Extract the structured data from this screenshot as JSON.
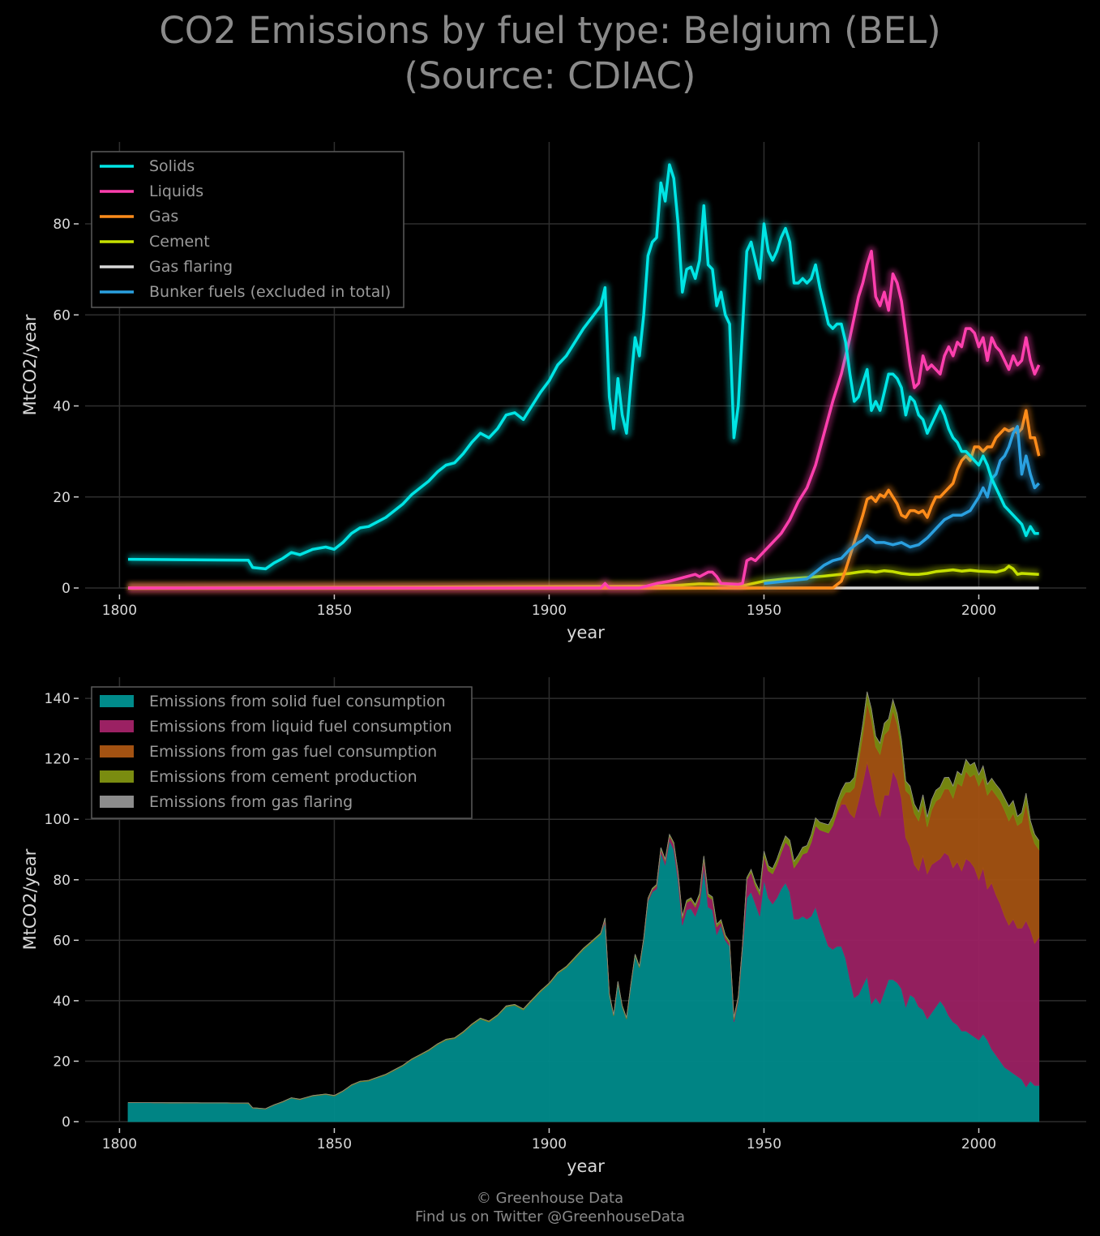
{
  "page": {
    "title_line1": "CO2 Emissions by fuel type: Belgium (BEL)",
    "title_line2": "(Source: CDIAC)",
    "footer_line1": "© Greenhouse Data",
    "footer_line2": "Find us on Twitter @GreenhouseData"
  },
  "chart_data": [
    {
      "type": "line",
      "xlabel": "year",
      "ylabel": "MtCO2/year",
      "xlim": [
        1792,
        2025
      ],
      "ylim": [
        0,
        98
      ],
      "xticks": [
        1800,
        1850,
        1900,
        1950,
        2000
      ],
      "yticks": [
        0,
        20,
        40,
        60,
        80
      ],
      "grid": true,
      "legend_position": "top-left",
      "series": [
        {
          "name": "Solids",
          "color": "#00e5e5",
          "x": [
            1802,
            1830,
            1831,
            1834,
            1836,
            1838,
            1840,
            1842,
            1845,
            1848,
            1850,
            1852,
            1854,
            1856,
            1858,
            1860,
            1862,
            1864,
            1866,
            1868,
            1870,
            1872,
            1874,
            1876,
            1878,
            1880,
            1882,
            1884,
            1886,
            1888,
            1890,
            1892,
            1894,
            1896,
            1898,
            1900,
            1902,
            1904,
            1906,
            1908,
            1910,
            1912,
            1913,
            1914,
            1915,
            1916,
            1917,
            1918,
            1919,
            1920,
            1921,
            1922,
            1923,
            1924,
            1925,
            1926,
            1927,
            1928,
            1929,
            1930,
            1931,
            1932,
            1933,
            1934,
            1935,
            1936,
            1937,
            1938,
            1939,
            1940,
            1941,
            1942,
            1943,
            1944,
            1945,
            1946,
            1947,
            1948,
            1949,
            1950,
            1951,
            1952,
            1953,
            1954,
            1955,
            1956,
            1957,
            1958,
            1959,
            1960,
            1961,
            1962,
            1963,
            1964,
            1965,
            1966,
            1967,
            1968,
            1969,
            1970,
            1971,
            1972,
            1973,
            1974,
            1975,
            1976,
            1977,
            1978,
            1979,
            1980,
            1981,
            1982,
            1983,
            1984,
            1985,
            1986,
            1987,
            1988,
            1989,
            1990,
            1991,
            1992,
            1993,
            1994,
            1995,
            1996,
            1997,
            1998,
            1999,
            2000,
            2001,
            2002,
            2003,
            2004,
            2005,
            2006,
            2007,
            2008,
            2009,
            2010,
            2011,
            2012,
            2013,
            2014
          ],
          "values": [
            6.3,
            6.1,
            4.5,
            4.2,
            5.5,
            6.5,
            7.8,
            7.3,
            8.5,
            9.0,
            8.5,
            10.0,
            12.0,
            13.2,
            13.5,
            14.5,
            15.5,
            17.0,
            18.5,
            20.5,
            22.0,
            23.5,
            25.5,
            27.0,
            27.5,
            29.5,
            32.0,
            34.0,
            33.0,
            35.0,
            38.0,
            38.5,
            37.0,
            40.0,
            43.0,
            45.5,
            49.0,
            51.0,
            54.0,
            57.0,
            59.5,
            62.0,
            66.0,
            42.0,
            35.0,
            46.0,
            38.0,
            34.0,
            45.0,
            55.0,
            51.0,
            60.0,
            73.0,
            76.0,
            77.0,
            89.0,
            85.0,
            93.0,
            90.0,
            80.0,
            65.0,
            70.0,
            70.5,
            68.0,
            72.0,
            84.0,
            71.0,
            70.0,
            62.0,
            65.0,
            60.0,
            58.0,
            33.0,
            40.0,
            57.0,
            74.0,
            76.0,
            72.0,
            68.0,
            80.0,
            74.0,
            72.0,
            74.0,
            77.0,
            79.0,
            76.0,
            67.0,
            67.0,
            68.0,
            67.0,
            68.0,
            71.0,
            66.0,
            62.0,
            58.0,
            57.0,
            58.0,
            58.0,
            54.0,
            47.0,
            41.0,
            42.0,
            45.0,
            48.0,
            39.0,
            41.0,
            39.0,
            43.0,
            47.0,
            47.0,
            46.0,
            44.0,
            38.0,
            42.0,
            41.0,
            38.0,
            37.0,
            34.0,
            36.0,
            38.0,
            40.0,
            38.0,
            35.0,
            33.0,
            32.0,
            30.0,
            30.0,
            29.0,
            28.0,
            27.0,
            29.0,
            27.0,
            24.0,
            22.0,
            20.0,
            18.0,
            17.0,
            16.0,
            15.0,
            14.0,
            11.5,
            13.5,
            12.0,
            12.0
          ]
        },
        {
          "name": "Liquids",
          "color": "#ff3fae",
          "x": [
            1802,
            1912,
            1913,
            1914,
            1921,
            1925,
            1928,
            1930,
            1932,
            1934,
            1935,
            1937,
            1938,
            1939,
            1940,
            1944,
            1945,
            1946,
            1947,
            1948,
            1950,
            1952,
            1954,
            1956,
            1958,
            1960,
            1962,
            1964,
            1966,
            1968,
            1970,
            1972,
            1973,
            1974,
            1975,
            1976,
            1977,
            1978,
            1979,
            1980,
            1981,
            1982,
            1983,
            1984,
            1985,
            1986,
            1987,
            1988,
            1989,
            1990,
            1991,
            1992,
            1993,
            1994,
            1995,
            1996,
            1997,
            1998,
            1999,
            2000,
            2001,
            2002,
            2003,
            2004,
            2005,
            2006,
            2007,
            2008,
            2009,
            2010,
            2011,
            2012,
            2013,
            2014
          ],
          "values": [
            0,
            0,
            1.0,
            0,
            0,
            1.0,
            1.5,
            2.0,
            2.5,
            3.0,
            2.5,
            3.5,
            3.5,
            2.5,
            1.0,
            0.8,
            1.0,
            6.0,
            6.5,
            6.0,
            8.0,
            10.0,
            12.0,
            15.0,
            19.0,
            22.0,
            27.0,
            34.0,
            41.0,
            47.0,
            55.0,
            64.0,
            67.0,
            71.0,
            74.0,
            64.0,
            62.0,
            65.0,
            61.0,
            69.0,
            67.0,
            63.0,
            56.0,
            49.0,
            44.0,
            45.0,
            51.0,
            48.0,
            49.0,
            48.0,
            47.0,
            51.0,
            53.0,
            51.0,
            54.0,
            53.0,
            57.0,
            57.0,
            56.0,
            53.0,
            55.0,
            50.0,
            55.0,
            53.0,
            52.0,
            50.0,
            48.0,
            51.0,
            49.0,
            50.0,
            55.0,
            50.0,
            47.0,
            49.0
          ]
        },
        {
          "name": "Gas",
          "color": "#ff8c1a",
          "x": [
            1802,
            1966,
            1968,
            1969,
            1970,
            1971,
            1972,
            1973,
            1974,
            1975,
            1976,
            1977,
            1978,
            1979,
            1980,
            1981,
            1982,
            1983,
            1984,
            1985,
            1986,
            1987,
            1988,
            1989,
            1990,
            1991,
            1992,
            1993,
            1994,
            1995,
            1996,
            1997,
            1998,
            1999,
            2000,
            2001,
            2002,
            2003,
            2004,
            2005,
            2006,
            2007,
            2008,
            2009,
            2010,
            2011,
            2012,
            2013,
            2014
          ],
          "values": [
            0,
            0,
            1.5,
            4.0,
            7.0,
            10.0,
            13.0,
            16.0,
            19.5,
            20.0,
            19.0,
            20.5,
            20.0,
            21.5,
            20.0,
            18.5,
            16.0,
            15.5,
            17.0,
            17.0,
            16.5,
            17.0,
            15.5,
            18.0,
            20.0,
            20.0,
            21.0,
            22.0,
            23.0,
            26.0,
            28.0,
            29.0,
            28.0,
            31.0,
            31.0,
            30.0,
            31.0,
            31.0,
            33.0,
            34.0,
            35.0,
            34.5,
            35.0,
            34.0,
            35.0,
            39.0,
            33.0,
            33.0,
            29.0
          ]
        },
        {
          "name": "Cement",
          "color": "#c6e000",
          "x": [
            1802,
            1925,
            1930,
            1935,
            1940,
            1945,
            1950,
            1955,
            1960,
            1965,
            1970,
            1972,
            1974,
            1976,
            1978,
            1980,
            1982,
            1984,
            1986,
            1988,
            1990,
            1992,
            1994,
            1996,
            1998,
            2000,
            2002,
            2004,
            2006,
            2007,
            2008,
            2009,
            2010,
            2012,
            2014
          ],
          "values": [
            0,
            0.4,
            0.6,
            0.9,
            0.8,
            0.5,
            1.5,
            2.0,
            2.3,
            2.7,
            3.2,
            3.5,
            3.7,
            3.5,
            3.8,
            3.6,
            3.2,
            3.0,
            3.0,
            3.2,
            3.6,
            3.8,
            4.0,
            3.7,
            3.9,
            3.7,
            3.6,
            3.5,
            4.0,
            4.8,
            4.2,
            3.0,
            3.2,
            3.1,
            3.0
          ]
        },
        {
          "name": "Gas flaring",
          "color": "#d8d8d8",
          "x": [
            1802,
            2014
          ],
          "values": [
            0,
            0
          ]
        },
        {
          "name": "Bunker fuels (excluded in total)",
          "color": "#2aa0e0",
          "x": [
            1950,
            1955,
            1960,
            1962,
            1964,
            1966,
            1968,
            1970,
            1972,
            1973,
            1974,
            1976,
            1978,
            1980,
            1982,
            1984,
            1986,
            1988,
            1990,
            1992,
            1994,
            1996,
            1998,
            2000,
            2001,
            2002,
            2003,
            2004,
            2005,
            2006,
            2007,
            2008,
            2009,
            2010,
            2011,
            2012,
            2013,
            2014
          ],
          "values": [
            1.0,
            1.5,
            2.0,
            3.5,
            5.0,
            6.0,
            6.5,
            8.5,
            10.0,
            10.5,
            11.5,
            10.0,
            10.0,
            9.5,
            10.0,
            9.0,
            9.5,
            11.0,
            13.0,
            15.0,
            16.0,
            16.0,
            17.0,
            20.0,
            22.0,
            20.0,
            24.0,
            25.0,
            28.0,
            29.0,
            31.0,
            34.0,
            35.5,
            25.0,
            29.0,
            25.0,
            22.0,
            23.0
          ]
        }
      ]
    },
    {
      "type": "area",
      "stacked": true,
      "xlabel": "year",
      "ylabel": "MtCO2/year",
      "xlim": [
        1792,
        2025
      ],
      "ylim": [
        0,
        147
      ],
      "xticks": [
        1800,
        1850,
        1900,
        1950,
        2000
      ],
      "yticks": [
        0,
        20,
        40,
        60,
        80,
        100,
        120,
        140
      ],
      "grid": true,
      "legend_position": "top-left",
      "series": [
        {
          "name": "Emissions from solid fuel consumption",
          "color": "#008b8b",
          "source": "Solids"
        },
        {
          "name": "Emissions from liquid fuel consumption",
          "color": "#9b2163",
          "source": "Liquids"
        },
        {
          "name": "Emissions from gas fuel consumption",
          "color": "#a35212",
          "source": "Gas"
        },
        {
          "name": "Emissions from cement production",
          "color": "#7a8c10",
          "source": "Cement"
        },
        {
          "name": "Emissions from gas flaring",
          "color": "#8c8c8c",
          "source": "Gas flaring"
        }
      ]
    }
  ]
}
